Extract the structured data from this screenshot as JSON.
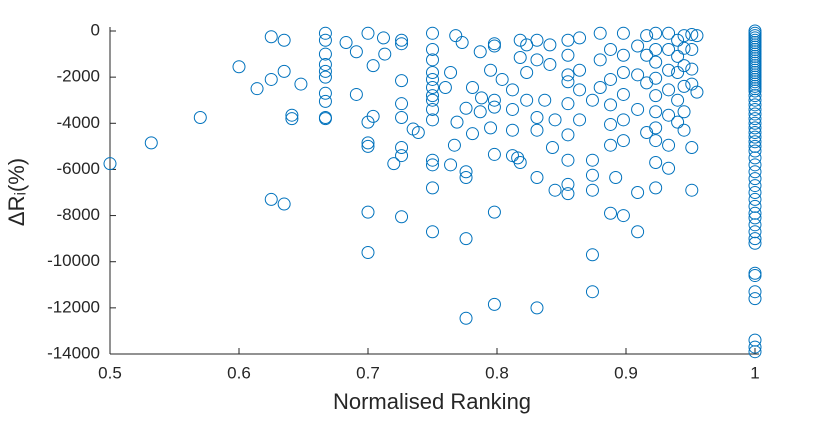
{
  "chart_data": {
    "type": "scatter",
    "x_label": "Normalised Ranking",
    "y_label": "ΔRᵢ(%)",
    "color": "#0072bd",
    "xlim": [
      0.5,
      1
    ],
    "xticks": [
      0.5,
      0.6,
      0.7,
      0.8,
      0.9,
      1
    ],
    "ylim": [
      -14000,
      0
    ],
    "yticks": [
      0,
      -2000,
      -4000,
      -6000,
      -8000,
      -10000,
      -12000,
      -14000
    ],
    "x": [
      0.5,
      0.532,
      0.57,
      0.6,
      0.614,
      0.625,
      0.625,
      0.625,
      0.635,
      0.635,
      0.635,
      0.641,
      0.641,
      0.648,
      0.667,
      0.667,
      0.667,
      0.667,
      0.667,
      0.667,
      0.667,
      0.667,
      0.667,
      0.667,
      0.683,
      0.691,
      0.691,
      0.7,
      0.7,
      0.7,
      0.7,
      0.7,
      0.7,
      0.704,
      0.704,
      0.712,
      0.713,
      0.72,
      0.726,
      0.726,
      0.726,
      0.726,
      0.726,
      0.726,
      0.726,
      0.726,
      0.735,
      0.739,
      0.75,
      0.75,
      0.75,
      0.75,
      0.75,
      0.75,
      0.75,
      0.75,
      0.75,
      0.75,
      0.75,
      0.75,
      0.75,
      0.75,
      0.76,
      0.764,
      0.764,
      0.767,
      0.768,
      0.769,
      0.773,
      0.776,
      0.776,
      0.776,
      0.776,
      0.776,
      0.781,
      0.781,
      0.787,
      0.787,
      0.788,
      0.795,
      0.795,
      0.798,
      0.798,
      0.798,
      0.798,
      0.798,
      0.798,
      0.798,
      0.804,
      0.812,
      0.812,
      0.812,
      0.812,
      0.816,
      0.818,
      0.818,
      0.818,
      0.823,
      0.823,
      0.823,
      0.831,
      0.831,
      0.831,
      0.831,
      0.831,
      0.831,
      0.837,
      0.841,
      0.841,
      0.843,
      0.845,
      0.845,
      0.855,
      0.855,
      0.855,
      0.855,
      0.855,
      0.855,
      0.855,
      0.855,
      0.855,
      0.864,
      0.864,
      0.864,
      0.864,
      0.874,
      0.874,
      0.874,
      0.874,
      0.874,
      0.874,
      0.88,
      0.88,
      0.88,
      0.888,
      0.888,
      0.888,
      0.888,
      0.888,
      0.888,
      0.892,
      0.898,
      0.898,
      0.898,
      0.898,
      0.898,
      0.898,
      0.898,
      0.909,
      0.909,
      0.909,
      0.909,
      0.909,
      0.916,
      0.916,
      0.916,
      0.916,
      0.923,
      0.923,
      0.923,
      0.923,
      0.923,
      0.923,
      0.923,
      0.923,
      0.923,
      0.923,
      0.933,
      0.933,
      0.933,
      0.933,
      0.933,
      0.933,
      0.933,
      0.94,
      0.94,
      0.94,
      0.94,
      0.94,
      0.945,
      0.945,
      0.945,
      0.945,
      0.945,
      0.945,
      0.951,
      0.951,
      0.951,
      0.951,
      0.951,
      0.951,
      0.955,
      0.955,
      1,
      1,
      1,
      1,
      1,
      1,
      1,
      1,
      1,
      1,
      1,
      1,
      1,
      1,
      1,
      1,
      1,
      1,
      1,
      1,
      1,
      1,
      1,
      1,
      1,
      1,
      1,
      1,
      1,
      1,
      1,
      1,
      1,
      1,
      1,
      1,
      1,
      1,
      1,
      1,
      1,
      1,
      1,
      1,
      1,
      1,
      1,
      1,
      1,
      1,
      1,
      1,
      1,
      1,
      1,
      1,
      1,
      1,
      1,
      1,
      1
    ],
    "values": [
      -5750,
      -4850,
      -3750,
      -1550,
      -2500,
      -250,
      -7300,
      -2100,
      -400,
      -7500,
      -1750,
      -3650,
      -3800,
      -2300,
      -100,
      -400,
      -1000,
      -1450,
      -1750,
      -2000,
      -2700,
      -3050,
      -3750,
      -3800,
      -500,
      -900,
      -2750,
      -100,
      -3950,
      -4850,
      -5000,
      -7850,
      -9600,
      -1500,
      -3700,
      -300,
      -1000,
      -5750,
      -400,
      -550,
      -2150,
      -3150,
      -3750,
      -5050,
      -5400,
      -8050,
      -4250,
      -4400,
      -100,
      -800,
      -1250,
      -1800,
      -2100,
      -2450,
      -2800,
      -3000,
      -3400,
      -3850,
      -5600,
      -5800,
      -6800,
      -8700,
      -2450,
      -1800,
      -5800,
      -4950,
      -200,
      -3950,
      -500,
      -6100,
      -6350,
      -9000,
      -12450,
      -3350,
      -2450,
      -4450,
      -900,
      -3500,
      -2900,
      -1700,
      -4200,
      -550,
      -650,
      -3000,
      -3300,
      -5350,
      -11850,
      -7850,
      -2100,
      -2550,
      -3400,
      -4300,
      -5400,
      -5500,
      -400,
      -1150,
      -5700,
      -600,
      -1800,
      -3000,
      -400,
      -1250,
      -3750,
      -4300,
      -6350,
      -12000,
      -3000,
      -600,
      -1450,
      -5050,
      -6900,
      -3850,
      -400,
      -1050,
      -1900,
      -2200,
      -3150,
      -4500,
      -5600,
      -6650,
      -7050,
      -300,
      -1700,
      -2550,
      -3850,
      -3000,
      -5600,
      -6250,
      -6900,
      -9700,
      -11300,
      -100,
      -1250,
      -2450,
      -800,
      -2100,
      -3200,
      -4050,
      -4950,
      -7900,
      -6350,
      -100,
      -1050,
      -1800,
      -2750,
      -3850,
      -4750,
      -8000,
      -650,
      -1900,
      -3400,
      -7000,
      -8700,
      -200,
      -1050,
      -2250,
      -4400,
      -100,
      -800,
      -1350,
      -2050,
      -2800,
      -3500,
      -4200,
      -4750,
      -5700,
      -6800,
      -100,
      -800,
      -1700,
      -2550,
      -3650,
      -4950,
      -5950,
      -400,
      -1100,
      -1800,
      -3000,
      -3950,
      -200,
      -750,
      -1500,
      -2400,
      -3500,
      -4300,
      -150,
      -800,
      -1650,
      -2300,
      -5050,
      -6900,
      -200,
      -2650,
      0,
      -100,
      -200,
      -300,
      -400,
      -500,
      -600,
      -700,
      -800,
      -900,
      -1000,
      -1100,
      -1200,
      -1300,
      -1400,
      -1500,
      -1600,
      -1700,
      -1800,
      -1900,
      -2000,
      -2100,
      -2200,
      -2300,
      -2400,
      -2500,
      -2600,
      -2800,
      -3000,
      -3200,
      -3400,
      -3600,
      -3800,
      -4000,
      -4200,
      -4400,
      -4600,
      -4800,
      -5000,
      -5200,
      -5500,
      -5800,
      -6100,
      -6400,
      -6700,
      -7000,
      -7300,
      -7600,
      -7900,
      -8100,
      -8400,
      -8700,
      -9000,
      -9200,
      -10500,
      -10600,
      -11300,
      -11600,
      -13400,
      -13700,
      -13900
    ]
  }
}
